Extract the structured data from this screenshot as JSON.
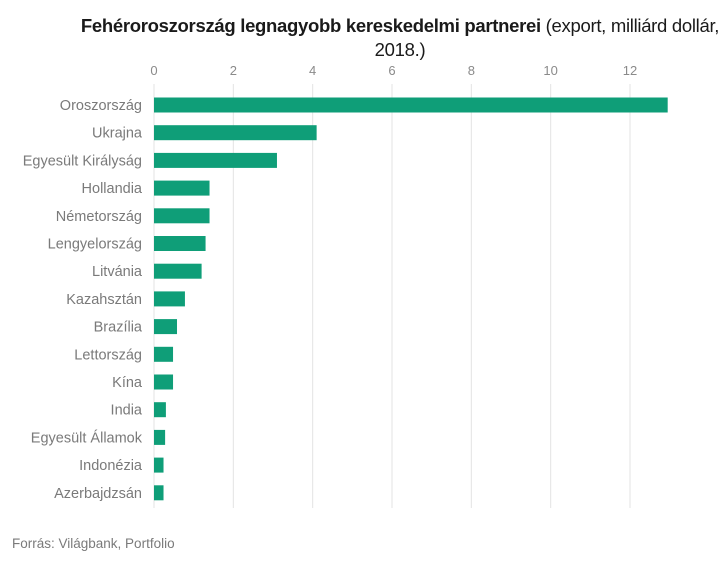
{
  "title": {
    "bold": "Fehéroroszország legnagyobb kereskedelmi partnerei",
    "rest": " (export, milliárd dollár, 2018.)"
  },
  "source": "Forrás: Világbank, Portfolio",
  "colors": {
    "bar": "#0f9e78",
    "grid": "#e3e3e3"
  },
  "chart_data": {
    "type": "bar",
    "orientation": "horizontal",
    "title": "Fehéroroszország legnagyobb kereskedelmi partnerei (export, milliárd dollár, 2018.)",
    "categories": [
      "Oroszország",
      "Ukrajna",
      "Egyesült Királyság",
      "Hollandia",
      "Németország",
      "Lengyelország",
      "Litvánia",
      "Kazahsztán",
      "Brazília",
      "Lettország",
      "Kína",
      "India",
      "Egyesült Államok",
      "Indonézia",
      "Azerbajdzsán"
    ],
    "values": [
      12.95,
      4.1,
      3.1,
      1.4,
      1.4,
      1.3,
      1.2,
      0.78,
      0.58,
      0.48,
      0.48,
      0.3,
      0.28,
      0.24,
      0.24
    ],
    "xlim": [
      0,
      13
    ],
    "xticks": [
      0,
      2,
      4,
      6,
      8,
      10,
      12
    ],
    "xaxis_position": "top",
    "grid": true
  }
}
